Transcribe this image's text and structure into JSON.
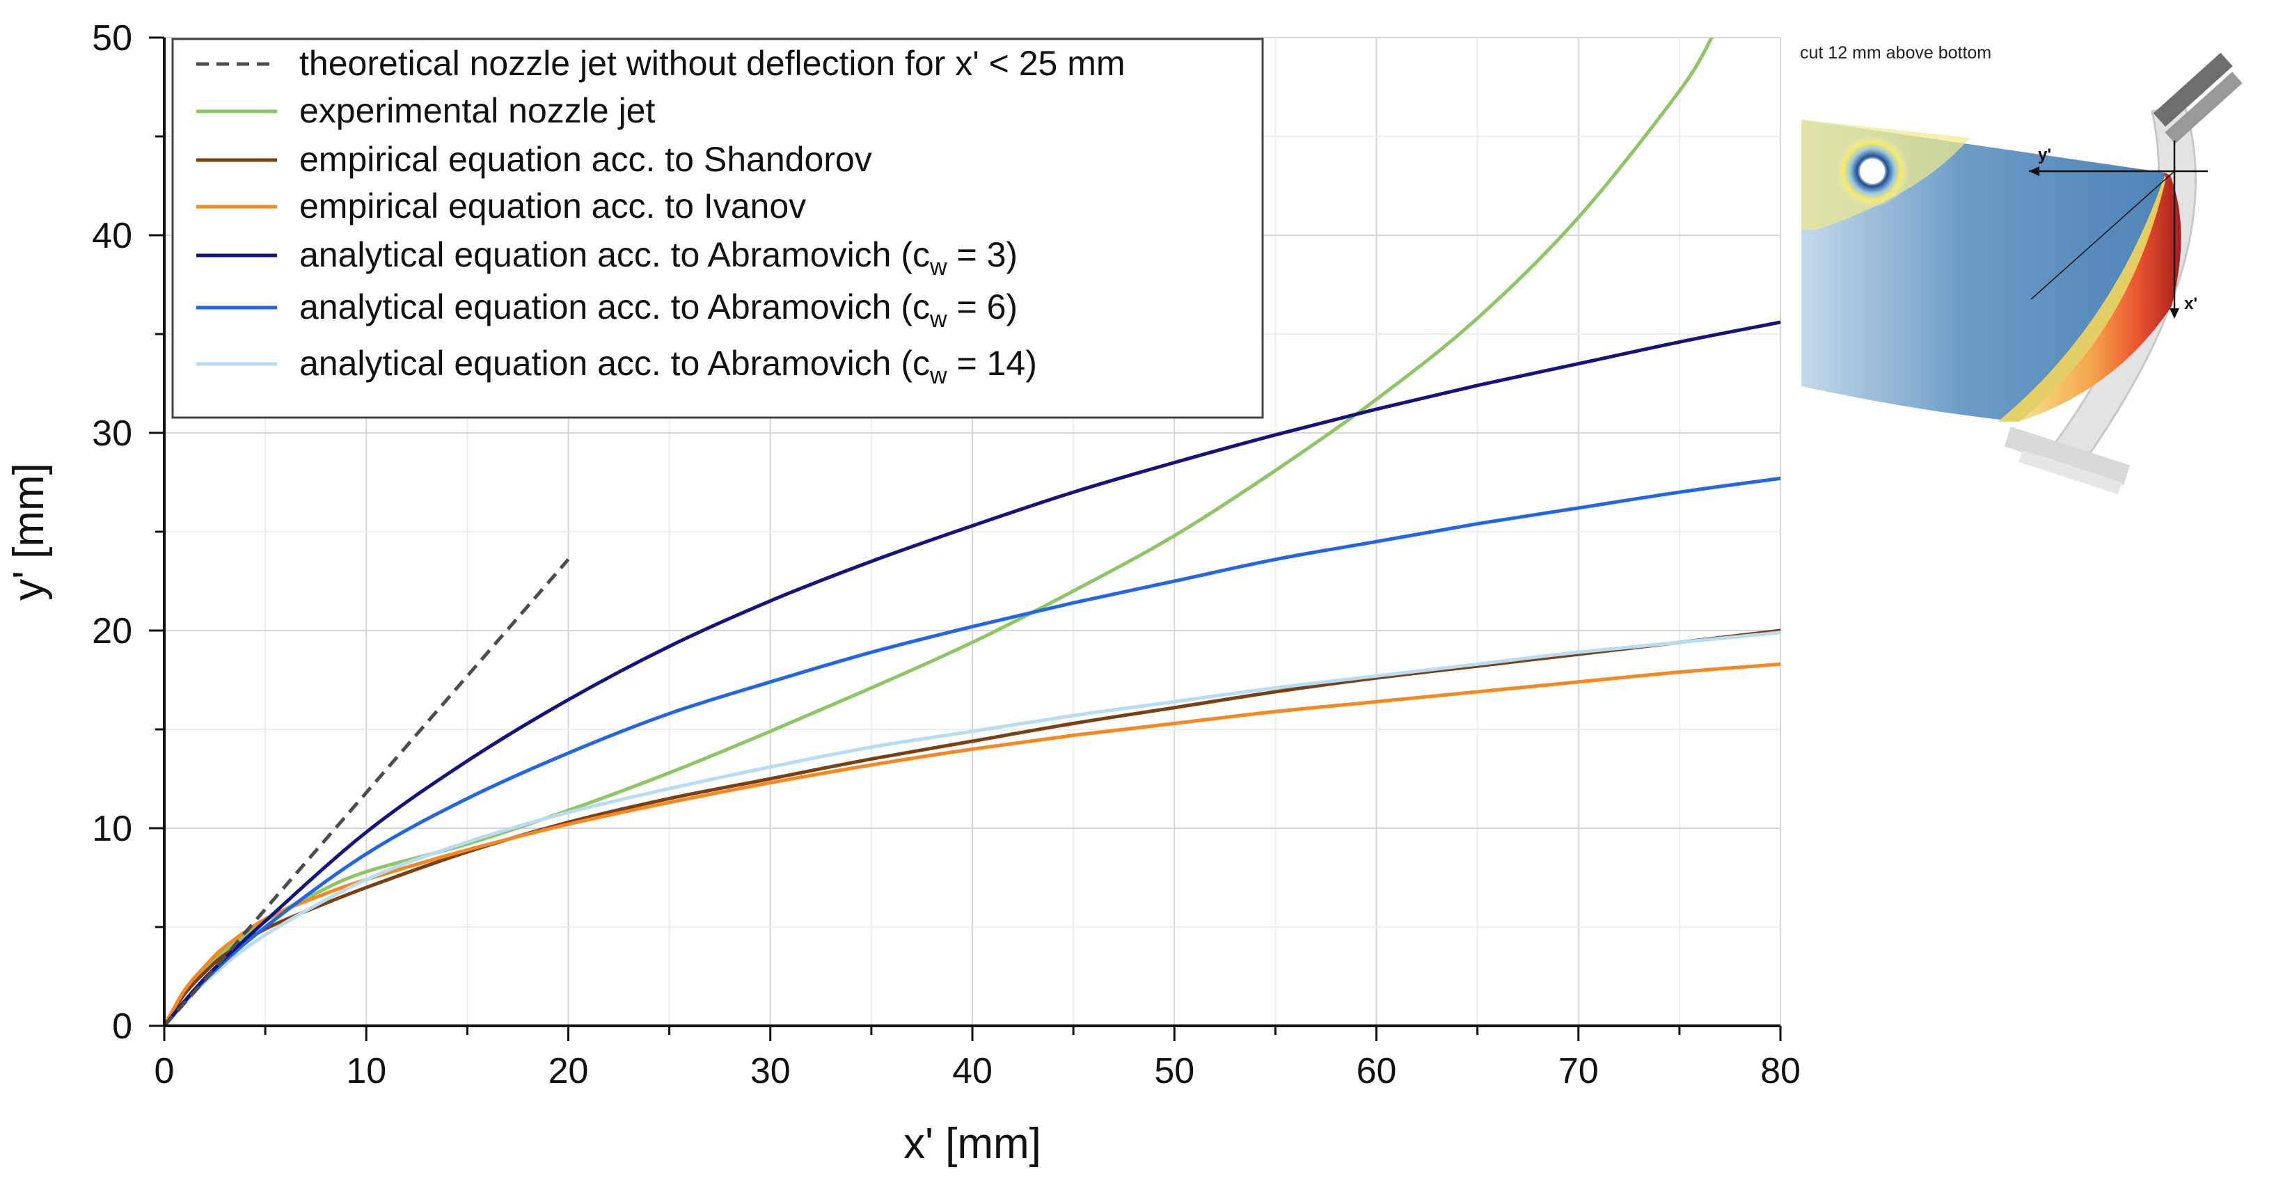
{
  "chart_data": {
    "type": "line",
    "title": "",
    "xlabel": "x' [mm]",
    "ylabel": "y' [mm]",
    "xlim": [
      0,
      80
    ],
    "ylim": [
      0,
      50
    ],
    "xticks": [
      "0",
      "10",
      "20",
      "30",
      "40",
      "50",
      "60",
      "70",
      "80"
    ],
    "yticks": [
      "0",
      "10",
      "20",
      "30",
      "40",
      "50"
    ],
    "grid": true,
    "legend_position": "top-left",
    "series": [
      {
        "name": "theoretical nozzle jet without deflection for x' < 25 mm",
        "color": "#4d4d4d",
        "dash": true,
        "x": [
          0,
          2.5,
          5,
          10,
          15,
          20
        ],
        "y": [
          0,
          2.9,
          5.9,
          11.8,
          17.7,
          23.6
        ]
      },
      {
        "name": "experimental nozzle jet",
        "color": "#8dc665",
        "dash": false,
        "x": [
          0,
          1,
          2,
          3,
          5,
          7.5,
          10,
          15,
          20,
          25,
          30,
          35,
          40,
          45,
          50,
          55,
          60,
          65,
          70,
          75,
          76.6
        ],
        "y": [
          0,
          1.7,
          2.9,
          3.8,
          5.3,
          6.7,
          7.8,
          9.2,
          10.9,
          12.8,
          14.9,
          17.1,
          19.4,
          22.0,
          24.8,
          28.1,
          31.7,
          35.8,
          40.9,
          47.3,
          50
        ]
      },
      {
        "name": "empirical equation acc. to Shandorov",
        "color": "#7b3f12",
        "dash": false,
        "x": [
          0,
          1,
          2,
          3,
          5,
          7.5,
          10,
          15,
          20,
          25,
          30,
          35,
          40,
          45,
          50,
          55,
          60,
          65,
          70,
          75,
          80
        ],
        "y": [
          0,
          1.6,
          2.7,
          3.6,
          4.9,
          6.0,
          7.0,
          8.8,
          10.3,
          11.5,
          12.5,
          13.5,
          14.4,
          15.3,
          16.1,
          16.9,
          17.6,
          18.2,
          18.8,
          19.4,
          20.0
        ]
      },
      {
        "name": "empirical equation acc. to Ivanov",
        "color": "#f5881f",
        "dash": false,
        "x": [
          0,
          1,
          2,
          3,
          5,
          7.5,
          10,
          15,
          20,
          25,
          30,
          35,
          40,
          45,
          50,
          55,
          60,
          65,
          70,
          75,
          80
        ],
        "y": [
          0,
          1.8,
          3.0,
          4.0,
          5.4,
          6.5,
          7.4,
          8.9,
          10.2,
          11.3,
          12.3,
          13.2,
          14.0,
          14.7,
          15.3,
          15.9,
          16.4,
          16.9,
          17.4,
          17.9,
          18.3
        ]
      },
      {
        "name": "analytical equation acc. to Abramovich (c_w = 3)",
        "label_main": "analytical equation acc. to Abramovich (c",
        "label_sub": "w",
        "label_end": " = 3)",
        "color": "#13147d",
        "dash": false,
        "x": [
          0,
          2,
          5,
          10,
          15,
          20,
          25,
          30,
          35,
          40,
          45,
          50,
          55,
          60,
          65,
          70,
          75,
          80
        ],
        "y": [
          0,
          2.4,
          5.3,
          9.8,
          13.4,
          16.5,
          19.2,
          21.5,
          23.5,
          25.3,
          27.0,
          28.5,
          29.9,
          31.2,
          32.4,
          33.5,
          34.6,
          35.6
        ]
      },
      {
        "name": "analytical equation acc. to Abramovich (c_w = 6)",
        "label_main": "analytical equation acc. to Abramovich (c",
        "label_sub": "w",
        "label_end": " = 6)",
        "color": "#2266e6",
        "dash": false,
        "x": [
          0,
          2,
          5,
          10,
          15,
          20,
          25,
          30,
          35,
          40,
          45,
          50,
          55,
          60,
          65,
          70,
          75,
          80
        ],
        "y": [
          0,
          2.3,
          5.0,
          8.7,
          11.5,
          13.8,
          15.8,
          17.4,
          18.9,
          20.2,
          21.4,
          22.5,
          23.6,
          24.5,
          25.4,
          26.2,
          27.0,
          27.7
        ]
      },
      {
        "name": "analytical equation acc. to Abramovich (c_w = 14)",
        "label_main": "analytical equation acc. to Abramovich (c",
        "label_sub": "w",
        "label_end": " = 14)",
        "color": "#b9dcf5",
        "dash": false,
        "x": [
          0,
          2,
          5,
          10,
          15,
          20,
          25,
          30,
          35,
          40,
          45,
          50,
          55,
          60,
          65,
          70,
          75,
          80
        ],
        "y": [
          0,
          2.2,
          4.6,
          7.4,
          9.3,
          10.8,
          12.0,
          13.1,
          14.1,
          14.9,
          15.7,
          16.4,
          17.1,
          17.7,
          18.3,
          18.9,
          19.4,
          19.9
        ]
      }
    ]
  },
  "inset": {
    "caption": "cut 12 mm above bottom",
    "axis_y_label": "y'",
    "axis_x_label": "x'"
  }
}
